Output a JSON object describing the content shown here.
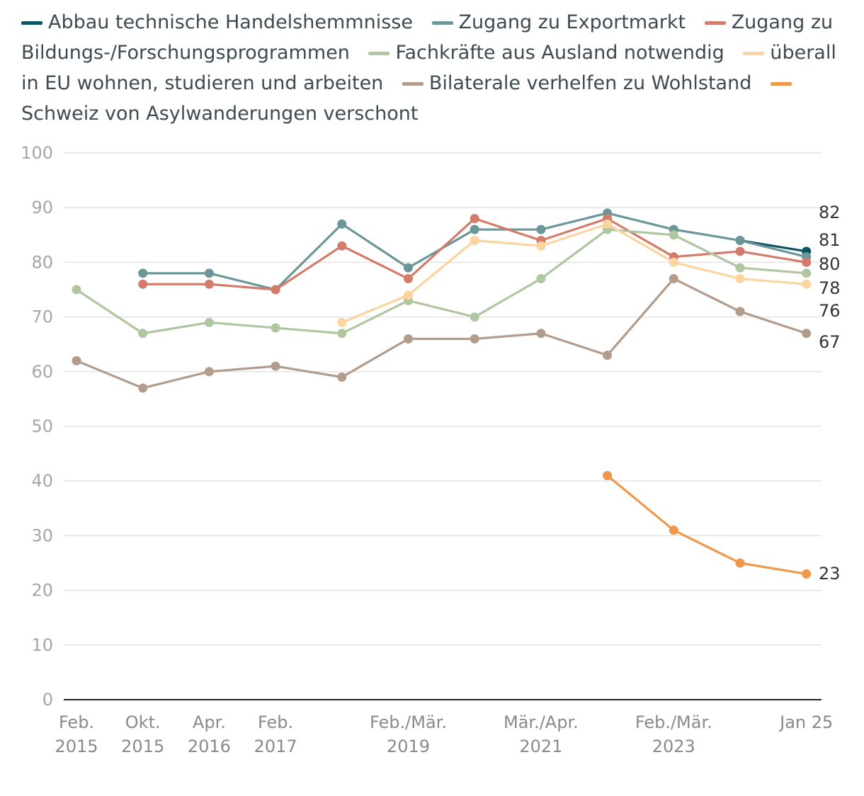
{
  "chart_data": {
    "type": "line",
    "title": "",
    "xlabel": "",
    "ylabel": "",
    "ylim": [
      0,
      100
    ],
    "yticks": [
      0,
      10,
      20,
      30,
      40,
      50,
      60,
      70,
      80,
      90,
      100
    ],
    "grid": true,
    "legend_position": "top",
    "x_tick_labels": [
      {
        "index": 0,
        "lines": [
          "Feb.",
          "2015"
        ]
      },
      {
        "index": 1,
        "lines": [
          "Okt.",
          "2015"
        ]
      },
      {
        "index": 2,
        "lines": [
          "Apr.",
          "2016"
        ]
      },
      {
        "index": 3,
        "lines": [
          "Feb.",
          "2017"
        ]
      },
      {
        "index": 5,
        "lines": [
          "Feb./Mär.",
          "2019"
        ]
      },
      {
        "index": 7,
        "lines": [
          "Mär./Apr.",
          "2021"
        ]
      },
      {
        "index": 9,
        "lines": [
          "Feb./Mär.",
          "2023"
        ]
      },
      {
        "index": 11,
        "lines": [
          "Jan 25"
        ]
      }
    ],
    "series": [
      {
        "name": "Abbau technische Handelshemmnisse",
        "color": "#0b5563",
        "values": [
          null,
          null,
          null,
          null,
          null,
          null,
          null,
          null,
          null,
          null,
          84,
          82
        ]
      },
      {
        "name": "Zugang zu Exportmarkt",
        "color": "#6b9799",
        "values": [
          null,
          78,
          78,
          75,
          87,
          79,
          86,
          86,
          89,
          86,
          84,
          81
        ]
      },
      {
        "name": "Zugang zu Bildungs-/Forschungsprogrammen",
        "color": "#d47c6c",
        "values": [
          null,
          76,
          76,
          75,
          83,
          77,
          88,
          84,
          88,
          81,
          82,
          80
        ]
      },
      {
        "name": "Fachkräfte aus Ausland notwendig",
        "color": "#b0c6a0",
        "values": [
          75,
          67,
          69,
          68,
          67,
          73,
          70,
          77,
          86,
          85,
          79,
          78
        ]
      },
      {
        "name": "überall in EU wohnen, studieren und arbeiten",
        "color": "#fbd49f",
        "values": [
          null,
          null,
          null,
          null,
          69,
          74,
          84,
          83,
          87,
          80,
          77,
          76
        ]
      },
      {
        "name": "Bilaterale verhelfen zu Wohlstand",
        "color": "#b39c8c",
        "values": [
          62,
          57,
          60,
          61,
          59,
          66,
          66,
          67,
          63,
          77,
          71,
          67
        ]
      },
      {
        "name": "Schweiz von Asylwanderungen verschont",
        "color": "#f0984a",
        "values": [
          null,
          null,
          null,
          null,
          null,
          null,
          null,
          null,
          41,
          31,
          25,
          23
        ]
      }
    ],
    "end_labels": [
      "82",
      "81",
      "80",
      "78",
      "76",
      "67",
      "23"
    ]
  }
}
